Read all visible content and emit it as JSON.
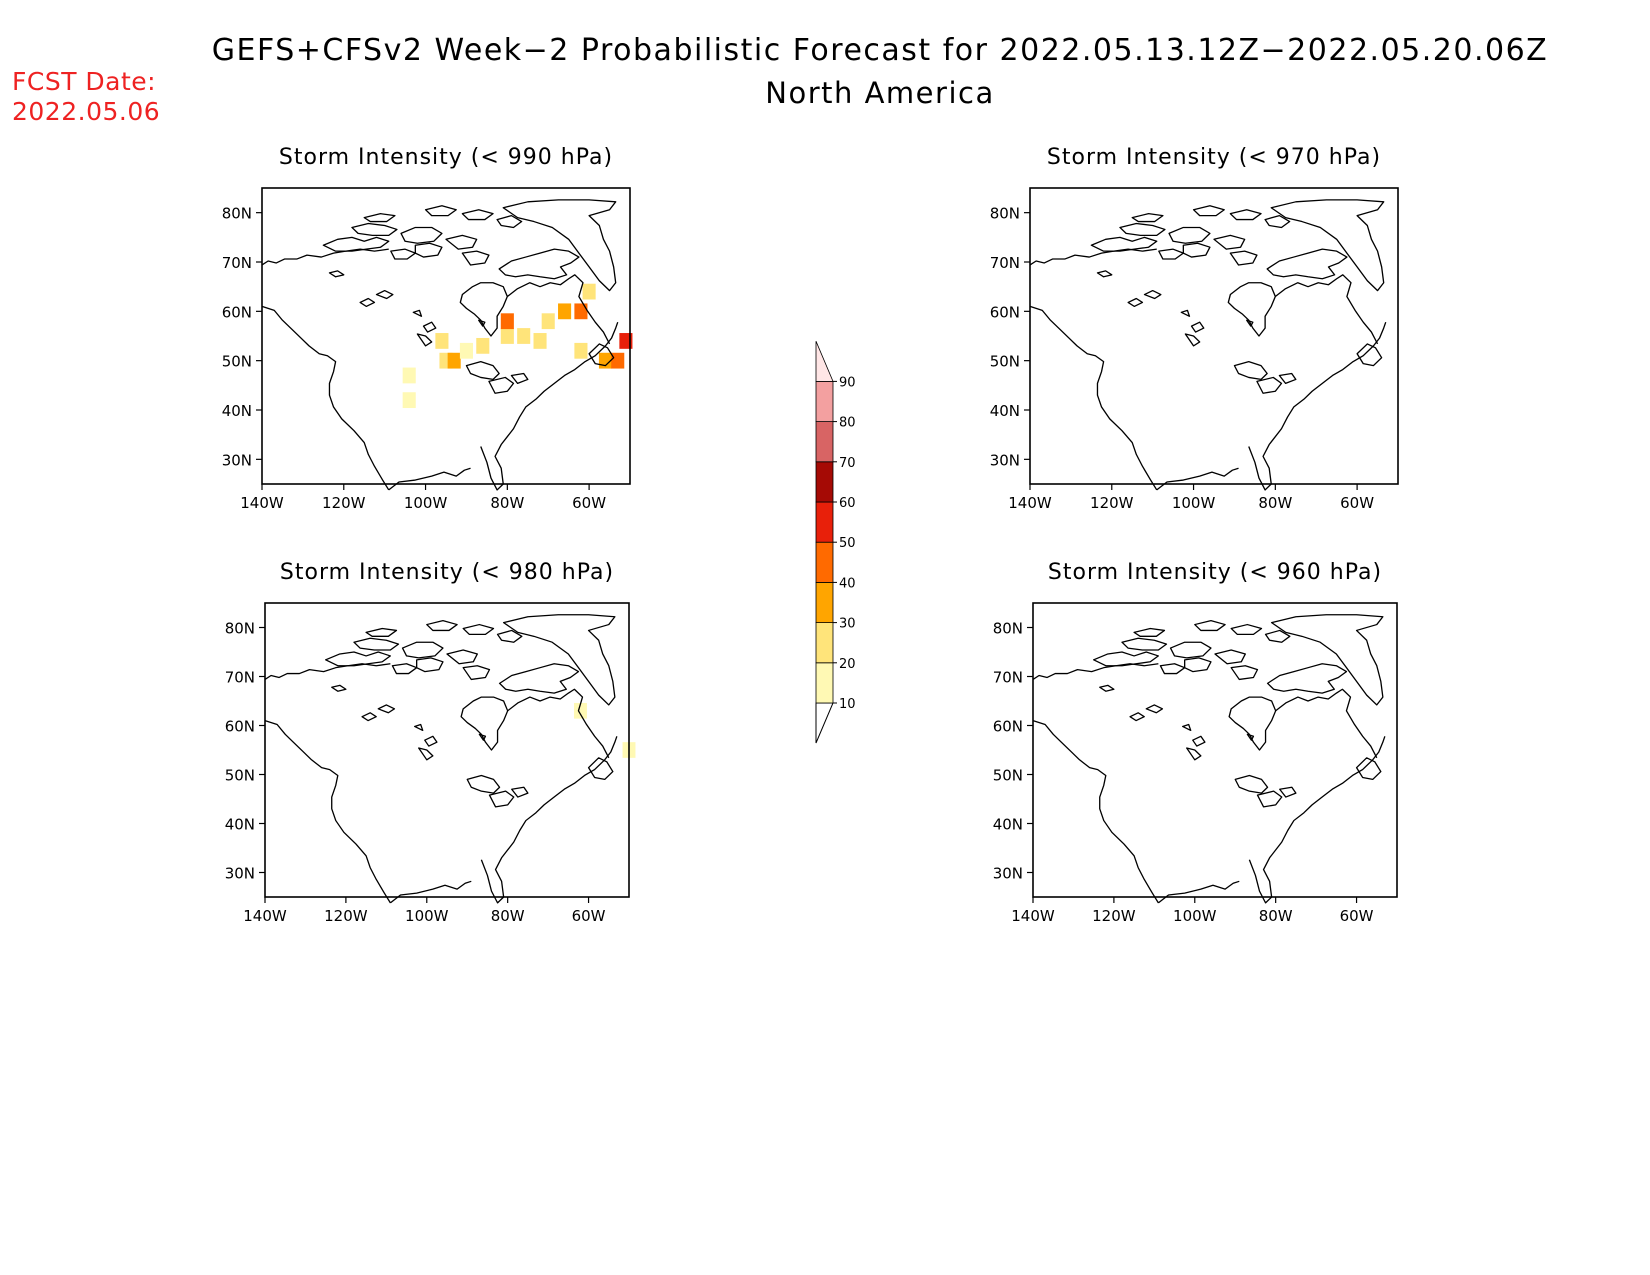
{
  "header": {
    "title": "GEFS+CFSv2 Week−2 Probabilistic Forecast for 2022.05.13.12Z−2022.05.20.06Z",
    "subtitle": "North America",
    "fcst_label": "FCST Date:",
    "fcst_date": "2022.05.06"
  },
  "lat_labels": [
    "80N",
    "70N",
    "60N",
    "50N",
    "40N",
    "30N"
  ],
  "lon_labels": [
    "140W",
    "120W",
    "100W",
    "80W",
    "60W"
  ],
  "panels": [
    {
      "title": "Storm Intensity (< 990 hPa)",
      "cells": [
        {
          "lon": -104,
          "lat": 47,
          "level": 10
        },
        {
          "lon": -104,
          "lat": 42,
          "level": 10
        },
        {
          "lon": -96,
          "lat": 54,
          "level": 20
        },
        {
          "lon": -95,
          "lat": 50,
          "level": 20
        },
        {
          "lon": -93,
          "lat": 50,
          "level": 30
        },
        {
          "lon": -90,
          "lat": 52,
          "level": 10
        },
        {
          "lon": -86,
          "lat": 53,
          "level": 20
        },
        {
          "lon": -80,
          "lat": 55,
          "level": 20
        },
        {
          "lon": -80,
          "lat": 58,
          "level": 40
        },
        {
          "lon": -76,
          "lat": 55,
          "level": 20
        },
        {
          "lon": -72,
          "lat": 54,
          "level": 20
        },
        {
          "lon": -70,
          "lat": 58,
          "level": 20
        },
        {
          "lon": -66,
          "lat": 60,
          "level": 30
        },
        {
          "lon": -62,
          "lat": 60,
          "level": 40
        },
        {
          "lon": -60,
          "lat": 64,
          "level": 20
        },
        {
          "lon": -62,
          "lat": 52,
          "level": 20
        },
        {
          "lon": -56,
          "lat": 50,
          "level": 30
        },
        {
          "lon": -53,
          "lat": 50,
          "level": 40
        },
        {
          "lon": -51,
          "lat": 54,
          "level": 50
        }
      ]
    },
    {
      "title": "Storm Intensity (< 970 hPa)",
      "cells": []
    },
    {
      "title": "Storm Intensity (< 980 hPa)",
      "cells": [
        {
          "lon": -62,
          "lat": 63,
          "level": 10
        },
        {
          "lon": -50,
          "lat": 55,
          "level": 10
        }
      ]
    },
    {
      "title": "Storm Intensity (< 960 hPa)",
      "cells": []
    }
  ],
  "colorbar": {
    "levels": [
      "10",
      "20",
      "30",
      "40",
      "50",
      "60",
      "70",
      "80",
      "90"
    ],
    "colors": [
      "#fff9b4",
      "#ffe47a",
      "#ffa500",
      "#ff6a00",
      "#e8200a",
      "#a50a05",
      "#d86464",
      "#f3a0a0",
      "#ffe6e6"
    ]
  }
}
